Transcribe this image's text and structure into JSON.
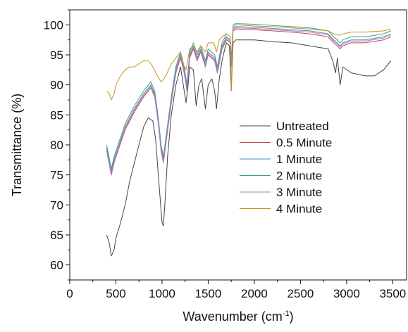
{
  "chart_data": {
    "type": "line",
    "xlabel": "Wavenumber (cm",
    "xlabel_sup": "-1",
    "xlabel_close": ")",
    "ylabel": "Transmittance (%)",
    "xlim": [
      0,
      3650
    ],
    "ylim": [
      57.5,
      102.5
    ],
    "xticks": [
      0,
      500,
      1000,
      1500,
      2000,
      2500,
      3000,
      3500
    ],
    "yticks": [
      60,
      65,
      70,
      75,
      80,
      85,
      90,
      95,
      100
    ],
    "xtick_labels": [
      "0",
      "500",
      "1000",
      "1500",
      "2000",
      "2500",
      "3000",
      "3500"
    ],
    "ytick_labels": [
      "60",
      "65",
      "70",
      "75",
      "80",
      "85",
      "90",
      "95",
      "100"
    ],
    "grid": false,
    "legend_position": "center-right",
    "series": [
      {
        "name": "Untreated",
        "color": "#444444",
        "points": [
          [
            400,
            65
          ],
          [
            430,
            63.5
          ],
          [
            450,
            61.5
          ],
          [
            480,
            62.5
          ],
          [
            500,
            64.5
          ],
          [
            550,
            67
          ],
          [
            600,
            70
          ],
          [
            650,
            74
          ],
          [
            700,
            77
          ],
          [
            750,
            80
          ],
          [
            800,
            83
          ],
          [
            850,
            84.5
          ],
          [
            900,
            84
          ],
          [
            930,
            81
          ],
          [
            960,
            75
          ],
          [
            980,
            71
          ],
          [
            1000,
            67
          ],
          [
            1015,
            66.5
          ],
          [
            1030,
            70
          ],
          [
            1060,
            78
          ],
          [
            1100,
            85
          ],
          [
            1150,
            90
          ],
          [
            1200,
            93
          ],
          [
            1230,
            90
          ],
          [
            1260,
            87
          ],
          [
            1280,
            89.5
          ],
          [
            1300,
            93
          ],
          [
            1340,
            92.5
          ],
          [
            1370,
            86.5
          ],
          [
            1400,
            90
          ],
          [
            1430,
            91
          ],
          [
            1470,
            86
          ],
          [
            1500,
            90
          ],
          [
            1540,
            91
          ],
          [
            1570,
            89
          ],
          [
            1590,
            86
          ],
          [
            1620,
            91
          ],
          [
            1650,
            94
          ],
          [
            1680,
            96
          ],
          [
            1700,
            97
          ],
          [
            1730,
            96.5
          ],
          [
            1750,
            89
          ],
          [
            1770,
            97
          ],
          [
            1800,
            97.5
          ],
          [
            2000,
            97.5
          ],
          [
            2200,
            97.2
          ],
          [
            2400,
            97
          ],
          [
            2600,
            96.5
          ],
          [
            2800,
            96
          ],
          [
            2850,
            94
          ],
          [
            2880,
            92
          ],
          [
            2900,
            94.5
          ],
          [
            2930,
            90
          ],
          [
            2960,
            93
          ],
          [
            3050,
            92
          ],
          [
            3200,
            91.5
          ],
          [
            3300,
            91.5
          ],
          [
            3400,
            92.5
          ],
          [
            3480,
            94
          ]
        ]
      },
      {
        "name": "0.5 Minute",
        "color": "#c84b4b",
        "points": [
          [
            400,
            79
          ],
          [
            450,
            75
          ],
          [
            480,
            77
          ],
          [
            500,
            78
          ],
          [
            600,
            82.5
          ],
          [
            700,
            85.5
          ],
          [
            800,
            88
          ],
          [
            880,
            89.5
          ],
          [
            920,
            88
          ],
          [
            960,
            83.5
          ],
          [
            990,
            79
          ],
          [
            1015,
            77
          ],
          [
            1040,
            80
          ],
          [
            1100,
            87
          ],
          [
            1150,
            92
          ],
          [
            1200,
            94.5
          ],
          [
            1240,
            92
          ],
          [
            1270,
            89
          ],
          [
            1300,
            94.5
          ],
          [
            1340,
            96
          ],
          [
            1380,
            94
          ],
          [
            1420,
            95.5
          ],
          [
            1470,
            93
          ],
          [
            1500,
            95
          ],
          [
            1570,
            94
          ],
          [
            1600,
            92
          ],
          [
            1650,
            96
          ],
          [
            1700,
            97.5
          ],
          [
            1740,
            97
          ],
          [
            1750,
            93
          ],
          [
            1770,
            99
          ],
          [
            1800,
            99.3
          ],
          [
            2000,
            99.2
          ],
          [
            2200,
            99
          ],
          [
            2400,
            98.8
          ],
          [
            2600,
            98.5
          ],
          [
            2800,
            98
          ],
          [
            2860,
            97
          ],
          [
            2900,
            96.5
          ],
          [
            2930,
            96
          ],
          [
            2960,
            96.5
          ],
          [
            3050,
            97
          ],
          [
            3200,
            97
          ],
          [
            3400,
            97.5
          ],
          [
            3480,
            98
          ]
        ]
      },
      {
        "name": "1 Minute",
        "color": "#4a8bb0",
        "points": [
          [
            400,
            79.5
          ],
          [
            450,
            75.5
          ],
          [
            480,
            77.5
          ],
          [
            500,
            78.5
          ],
          [
            600,
            83
          ],
          [
            700,
            86
          ],
          [
            800,
            88.5
          ],
          [
            880,
            90
          ],
          [
            920,
            88.5
          ],
          [
            960,
            84
          ],
          [
            990,
            79.5
          ],
          [
            1015,
            77.5
          ],
          [
            1040,
            80.5
          ],
          [
            1100,
            87.5
          ],
          [
            1150,
            92.5
          ],
          [
            1200,
            95
          ],
          [
            1240,
            92.5
          ],
          [
            1270,
            89.5
          ],
          [
            1300,
            95
          ],
          [
            1340,
            96.5
          ],
          [
            1380,
            94.5
          ],
          [
            1420,
            96
          ],
          [
            1470,
            93.5
          ],
          [
            1500,
            95.5
          ],
          [
            1570,
            94.5
          ],
          [
            1600,
            92.5
          ],
          [
            1650,
            96.5
          ],
          [
            1700,
            98
          ],
          [
            1740,
            97.5
          ],
          [
            1750,
            93.5
          ],
          [
            1770,
            99.5
          ],
          [
            1800,
            99.7
          ],
          [
            2000,
            99.6
          ],
          [
            2200,
            99.4
          ],
          [
            2400,
            99.2
          ],
          [
            2600,
            99
          ],
          [
            2800,
            98.5
          ],
          [
            2860,
            97.5
          ],
          [
            2900,
            97
          ],
          [
            2930,
            96.5
          ],
          [
            2960,
            97
          ],
          [
            3050,
            97.5
          ],
          [
            3200,
            97.5
          ],
          [
            3400,
            98
          ],
          [
            3480,
            98.5
          ]
        ]
      },
      {
        "name": "2 Minute",
        "color": "#3a9e88",
        "points": [
          [
            400,
            80
          ],
          [
            450,
            76
          ],
          [
            480,
            78
          ],
          [
            500,
            79
          ],
          [
            600,
            83.5
          ],
          [
            700,
            86.5
          ],
          [
            800,
            89
          ],
          [
            880,
            90.5
          ],
          [
            920,
            89
          ],
          [
            960,
            84.5
          ],
          [
            990,
            80
          ],
          [
            1015,
            78
          ],
          [
            1040,
            81
          ],
          [
            1100,
            88
          ],
          [
            1150,
            93
          ],
          [
            1200,
            95.5
          ],
          [
            1240,
            93
          ],
          [
            1270,
            90
          ],
          [
            1300,
            95.5
          ],
          [
            1340,
            97
          ],
          [
            1380,
            95
          ],
          [
            1420,
            96.5
          ],
          [
            1470,
            94
          ],
          [
            1500,
            96
          ],
          [
            1570,
            95
          ],
          [
            1600,
            93
          ],
          [
            1650,
            97
          ],
          [
            1700,
            98.5
          ],
          [
            1740,
            98
          ],
          [
            1750,
            94
          ],
          [
            1770,
            100
          ],
          [
            1800,
            100.2
          ],
          [
            2000,
            100.1
          ],
          [
            2200,
            99.9
          ],
          [
            2400,
            99.7
          ],
          [
            2600,
            99.5
          ],
          [
            2800,
            99
          ],
          [
            2860,
            98
          ],
          [
            2900,
            97.5
          ],
          [
            2930,
            97
          ],
          [
            2960,
            97.5
          ],
          [
            3050,
            98
          ],
          [
            3200,
            98
          ],
          [
            3400,
            98.5
          ],
          [
            3480,
            99
          ]
        ]
      },
      {
        "name": "3 Minute",
        "color": "#b07ad0",
        "points": [
          [
            400,
            79.2
          ],
          [
            450,
            75.2
          ],
          [
            480,
            77.2
          ],
          [
            500,
            78.2
          ],
          [
            600,
            82.8
          ],
          [
            700,
            85.8
          ],
          [
            800,
            88.2
          ],
          [
            880,
            89.8
          ],
          [
            920,
            88.2
          ],
          [
            960,
            83.8
          ],
          [
            990,
            79.2
          ],
          [
            1015,
            77.2
          ],
          [
            1040,
            80.2
          ],
          [
            1100,
            87.2
          ],
          [
            1150,
            92.2
          ],
          [
            1200,
            94.8
          ],
          [
            1240,
            92.2
          ],
          [
            1270,
            89.2
          ],
          [
            1300,
            94.8
          ],
          [
            1340,
            96.2
          ],
          [
            1380,
            94.2
          ],
          [
            1420,
            95.8
          ],
          [
            1470,
            93.2
          ],
          [
            1500,
            95.2
          ],
          [
            1570,
            94.2
          ],
          [
            1600,
            92.2
          ],
          [
            1650,
            96.2
          ],
          [
            1700,
            97.8
          ],
          [
            1740,
            97.2
          ],
          [
            1750,
            93.2
          ],
          [
            1770,
            99.2
          ],
          [
            1800,
            99.5
          ],
          [
            2000,
            99.4
          ],
          [
            2200,
            99.2
          ],
          [
            2400,
            99
          ],
          [
            2600,
            98.8
          ],
          [
            2800,
            98.3
          ],
          [
            2860,
            97.3
          ],
          [
            2900,
            96.8
          ],
          [
            2930,
            96.3
          ],
          [
            2960,
            96.8
          ],
          [
            3050,
            97.3
          ],
          [
            3200,
            97.3
          ],
          [
            3400,
            97.8
          ],
          [
            3480,
            98.3
          ]
        ]
      },
      {
        "name": "4 Minute",
        "color": "#c8961e",
        "points": [
          [
            400,
            89
          ],
          [
            430,
            88.5
          ],
          [
            450,
            87.5
          ],
          [
            480,
            88.5
          ],
          [
            500,
            90
          ],
          [
            550,
            91.5
          ],
          [
            600,
            92.5
          ],
          [
            650,
            93
          ],
          [
            700,
            93
          ],
          [
            750,
            93.5
          ],
          [
            800,
            94
          ],
          [
            850,
            94
          ],
          [
            880,
            93.5
          ],
          [
            900,
            93
          ],
          [
            950,
            91.5
          ],
          [
            990,
            90.5
          ],
          [
            1010,
            90.8
          ],
          [
            1040,
            91.5
          ],
          [
            1100,
            93.5
          ],
          [
            1150,
            94.5
          ],
          [
            1200,
            95.5
          ],
          [
            1230,
            93.5
          ],
          [
            1260,
            92.5
          ],
          [
            1300,
            96
          ],
          [
            1340,
            96.5
          ],
          [
            1380,
            95.5
          ],
          [
            1420,
            96.5
          ],
          [
            1470,
            95.5
          ],
          [
            1500,
            97
          ],
          [
            1560,
            97
          ],
          [
            1590,
            95.5
          ],
          [
            1620,
            97.5
          ],
          [
            1650,
            98
          ],
          [
            1700,
            98.5
          ],
          [
            1740,
            98
          ],
          [
            1750,
            89
          ],
          [
            1770,
            99.5
          ],
          [
            1800,
            100
          ],
          [
            2000,
            99.8
          ],
          [
            2200,
            99.7
          ],
          [
            2400,
            99.5
          ],
          [
            2600,
            99.3
          ],
          [
            2800,
            99
          ],
          [
            2860,
            98.5
          ],
          [
            2900,
            98.3
          ],
          [
            2930,
            98.3
          ],
          [
            2960,
            98.5
          ],
          [
            3050,
            98.8
          ],
          [
            3200,
            98.8
          ],
          [
            3400,
            99
          ],
          [
            3480,
            99.3
          ]
        ]
      }
    ]
  }
}
